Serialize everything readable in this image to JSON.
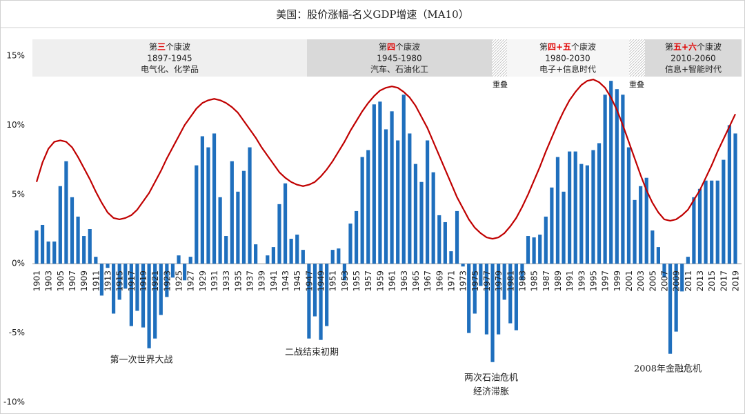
{
  "chart_data": {
    "type": "bar",
    "title": "美国：股价涨幅-名义GDP增速（MA10）",
    "categories": [
      "1901",
      null,
      "1903",
      null,
      "1905",
      null,
      "1907",
      null,
      "1909",
      null,
      "1911",
      null,
      "1913",
      null,
      "1915",
      null,
      "1917",
      null,
      "1919",
      null,
      "1921",
      null,
      "1923",
      null,
      "1925",
      null,
      "1927",
      null,
      "1929",
      null,
      "1931",
      null,
      "1933",
      null,
      "1935",
      null,
      "1937",
      null,
      "1939",
      null,
      "1941",
      null,
      "1943",
      null,
      "1945",
      null,
      "1947",
      null,
      "1949",
      null,
      "1951",
      null,
      "1953",
      null,
      "1955",
      null,
      "1957",
      null,
      "1959",
      null,
      "1961",
      null,
      "1963",
      null,
      "1965",
      null,
      "1967",
      null,
      "1969",
      null,
      "1971",
      null,
      "1973",
      null,
      "1975",
      null,
      "1977",
      null,
      "1979",
      null,
      "1981",
      null,
      "1983",
      null,
      "1985",
      null,
      "1987",
      null,
      "1989",
      null,
      "1991",
      null,
      "1993",
      null,
      "1995",
      null,
      "1997",
      null,
      "1999",
      null,
      "2001",
      null,
      "2003",
      null,
      "2005",
      null,
      "2007",
      null,
      "2009",
      null,
      "2011",
      null,
      "2013",
      null,
      "2015",
      null,
      "2017",
      null,
      "2019"
    ],
    "series": [
      {
        "type": "bar",
        "color": "#1f6fbd",
        "values": [
          2.4,
          2.8,
          1.6,
          1.6,
          5.6,
          7.4,
          4.8,
          3.4,
          2.0,
          2.5,
          0.5,
          -2.3,
          -0.3,
          -3.6,
          -2.6,
          -1.8,
          -4.5,
          -3.4,
          -4.6,
          -6.1,
          -5.4,
          -3.7,
          -2.4,
          -1.0,
          0.6,
          -1.2,
          0.5,
          7.1,
          9.2,
          8.4,
          9.4,
          4.8,
          2.0,
          7.4,
          5.2,
          6.7,
          8.4,
          1.4,
          0,
          0.6,
          1.2,
          4.3,
          5.8,
          1.8,
          2.1,
          1.0,
          -5.4,
          -3.8,
          -5.5,
          -4.5,
          1.0,
          1.1,
          -1.2,
          2.9,
          3.8,
          7.7,
          8.2,
          11.5,
          11.7,
          9.7,
          11.0,
          8.9,
          12.2,
          9.4,
          7.2,
          5.9,
          8.9,
          6.6,
          3.5,
          3.0,
          0.9,
          3.8,
          -0.2,
          -5.0,
          -3.6,
          -1.6,
          -5.1,
          -7.1,
          -5.1,
          -2.6,
          -4.3,
          -4.8,
          -1.2,
          2.0,
          1.9,
          2.1,
          3.4,
          5.5,
          7.7,
          5.2,
          8.1,
          8.1,
          7.2,
          7.1,
          8.2,
          8.7,
          12.2,
          13.2,
          12.6,
          12.2,
          8.4,
          4.6,
          5.6,
          6.2,
          2.4,
          1.2,
          -1.0,
          -6.5,
          -4.9,
          -2.0,
          0.5,
          4.8,
          5.4,
          6.0,
          6.0,
          6.0,
          7.5,
          10.0,
          9.4
        ]
      },
      {
        "type": "line",
        "color": "#c00000",
        "values": [
          5.9,
          7.3,
          8.3,
          8.8,
          8.9,
          8.8,
          8.4,
          7.7,
          6.9,
          6.1,
          5.2,
          4.4,
          3.7,
          3.3,
          3.2,
          3.3,
          3.5,
          3.9,
          4.5,
          5.1,
          5.9,
          6.7,
          7.6,
          8.4,
          9.2,
          10.0,
          10.6,
          11.2,
          11.6,
          11.8,
          11.9,
          11.8,
          11.6,
          11.3,
          10.9,
          10.3,
          9.7,
          9.1,
          8.4,
          7.8,
          7.2,
          6.6,
          6.2,
          5.9,
          5.7,
          5.6,
          5.7,
          5.9,
          6.3,
          6.8,
          7.4,
          8.1,
          8.8,
          9.6,
          10.3,
          11.0,
          11.6,
          12.1,
          12.5,
          12.7,
          12.8,
          12.7,
          12.4,
          12.0,
          11.4,
          10.6,
          9.8,
          8.8,
          7.8,
          6.8,
          5.8,
          4.8,
          4.0,
          3.2,
          2.6,
          2.2,
          1.9,
          1.8,
          1.9,
          2.2,
          2.7,
          3.3,
          4.1,
          5.0,
          6.0,
          7.0,
          8.1,
          9.1,
          10.1,
          11.0,
          11.8,
          12.4,
          12.9,
          13.2,
          13.3,
          13.1,
          12.7,
          12.0,
          11.1,
          10.0,
          8.8,
          7.6,
          6.4,
          5.3,
          4.4,
          3.7,
          3.2,
          3.1,
          3.2,
          3.5,
          3.9,
          4.6,
          5.3,
          6.2,
          7.1,
          8.1,
          9.0,
          9.9,
          10.8
        ]
      }
    ],
    "ylim": [
      -10,
      15
    ],
    "yticks": [
      {
        "value": -10,
        "label": "-10%"
      },
      {
        "value": -5,
        "label": "-5%"
      },
      {
        "value": 0,
        "label": "0%"
      },
      {
        "value": 5,
        "label": "5%"
      },
      {
        "value": 10,
        "label": "10%"
      },
      {
        "value": 15,
        "label": "15%"
      }
    ],
    "waves": [
      {
        "label_parts": [
          "第",
          "三",
          "个康波"
        ],
        "period": "1897-1945",
        "industry": "电气化、化学品"
      },
      {
        "label_parts": [
          "第",
          "四",
          "个康波"
        ],
        "period": "1945-1980",
        "industry": "汽车、石油化工"
      },
      {
        "label_parts": [
          "第",
          "四+五",
          "个康波"
        ],
        "period": "1980-2030",
        "industry": "电子+信息时代"
      },
      {
        "label_parts": [
          "第",
          "五+六",
          "个康波"
        ],
        "period": "2010-2060",
        "industry": "信息+智能时代"
      }
    ],
    "overlap_labels": [
      "重叠",
      "重叠"
    ],
    "annotations": [
      "第一次世界大战",
      "二战结束初期",
      "两次石油危机",
      "经济滞胀",
      "2008年金融危机"
    ]
  }
}
